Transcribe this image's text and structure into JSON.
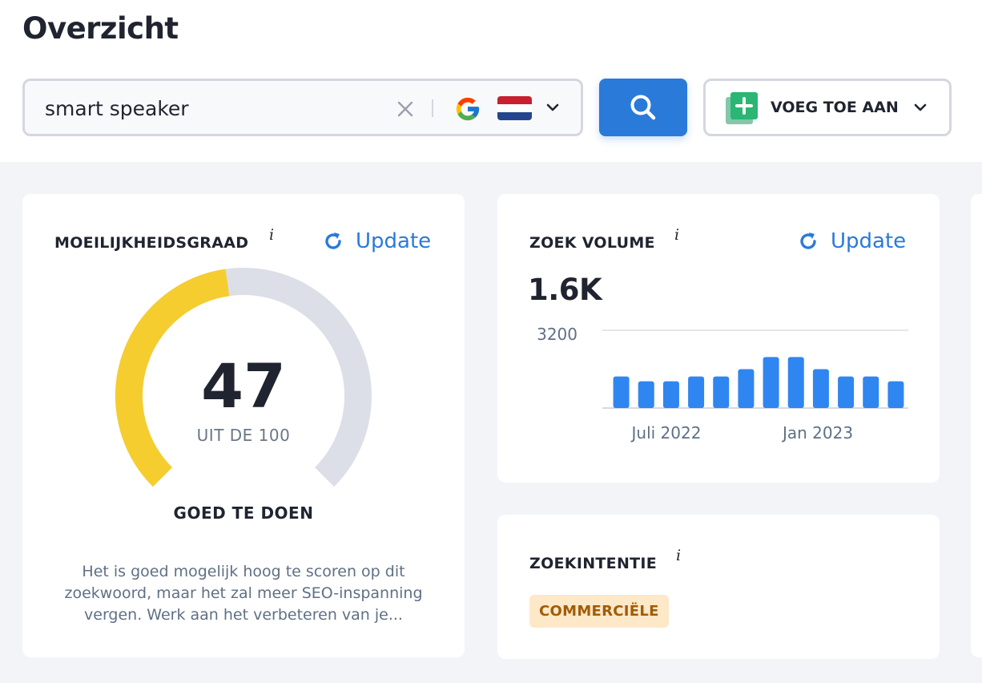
{
  "header": {
    "title": "Overzicht",
    "search": {
      "value": "smart speaker",
      "placeholder": ""
    },
    "engine_icon": "google-icon",
    "country_icon": "netherlands-flag-icon",
    "add_button_label": "VOEG TOE AAN"
  },
  "difficulty_card": {
    "title": "MOEILIJKHEIDSGRAAD",
    "info": "i",
    "update_label": "Update",
    "score": "47",
    "score_of": "UIT DE 100",
    "score_fraction": 0.47,
    "verdict": "GOED TE DOEN",
    "description": "Het is goed mogelijk hoog te scoren op dit zoekwoord, maar het zal meer SEO-inspanning vergen. Werk aan het verbeteren van je...",
    "colors": {
      "fill": "#f5cd2f",
      "track": "#dcdfe7"
    }
  },
  "volume_card": {
    "title": "ZOEK VOLUME",
    "info": "i",
    "update_label": "Update",
    "volume": "1.6K"
  },
  "intent_card": {
    "title": "ZOEKINTENTIE",
    "info": "i",
    "badge": "COMMERCIËLE"
  },
  "chart_data": {
    "type": "bar",
    "ylim": [
      0,
      3200
    ],
    "y_ticks": [
      "3200"
    ],
    "x_tick_labels": [
      "Juli 2022",
      "Jan 2023"
    ],
    "values": [
      1300,
      1100,
      1100,
      1300,
      1300,
      1600,
      2100,
      2100,
      1600,
      1300,
      1300,
      1100
    ],
    "bar_color": "#2f86f0",
    "grid": true
  }
}
